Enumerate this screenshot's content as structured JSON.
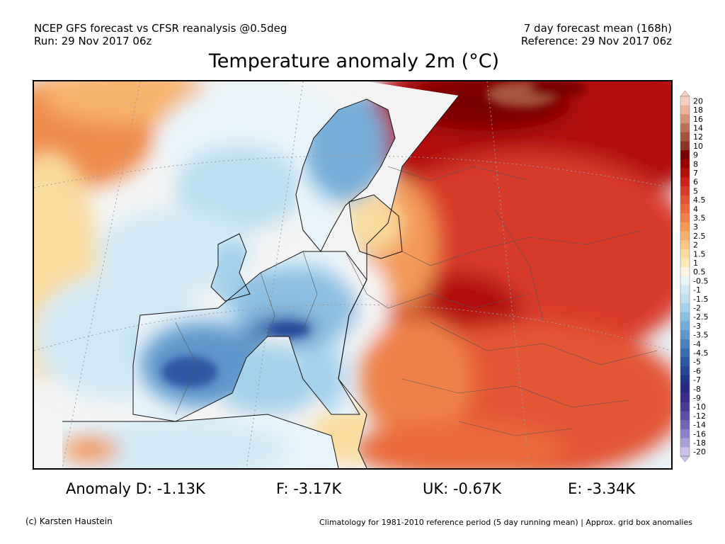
{
  "header": {
    "source_line": "NCEP GFS forecast vs CFSR reanalysis @0.5deg",
    "run_line": "Run: 29 Nov 2017 06z",
    "forecast_line": "7 day forecast mean (168h)",
    "reference_line": "Reference: 29 Nov 2017 06z"
  },
  "title": "Temperature anomaly 2m (°C)",
  "map": {
    "region": "Europe",
    "ocean_color": "#f5f5f5"
  },
  "legend": {
    "labels": [
      "20",
      "18",
      "16",
      "14",
      "12",
      "10",
      "9",
      "8",
      "7",
      "6",
      "5",
      "4.5",
      "4",
      "3.5",
      "3",
      "2.5",
      "2",
      "1.5",
      "1",
      "0.5",
      "-0.5",
      "-1",
      "-1.5",
      "-2",
      "-2.5",
      "-3",
      "-3.5",
      "-4",
      "-4.5",
      "-5",
      "-6",
      "-7",
      "-8",
      "-9",
      "-10",
      "-12",
      "-14",
      "-16",
      "-18",
      "-20"
    ],
    "colors": [
      "#f6d0bf",
      "#eab29b",
      "#d49278",
      "#bb7058",
      "#a55441",
      "#8a3525",
      "#7a0000",
      "#990000",
      "#b3100c",
      "#c8221a",
      "#d93a2c",
      "#e35436",
      "#ea6a3c",
      "#ef8048",
      "#f39a58",
      "#f6b26c",
      "#f8c884",
      "#fadc9e",
      "#fceab8",
      "#fdf6e0",
      "#e8f4fa",
      "#d2eaf6",
      "#bcdff1",
      "#a4d0ea",
      "#8cc0e2",
      "#74add8",
      "#5f98cc",
      "#4c82bf",
      "#3b6cb0",
      "#2e57a2",
      "#284696",
      "#23358a",
      "#2a2880",
      "#3a2c8a",
      "#4a3a96",
      "#5e4ea6",
      "#7464b6",
      "#8e80c8",
      "#ab9fd8",
      "#cac0ea"
    ]
  },
  "stats": {
    "d": "Anomaly D: -1.13K",
    "f": "F: -3.17K",
    "uk": "UK: -0.67K",
    "e": "E: -3.34K"
  },
  "footer": {
    "credit": "(c) Karsten Haustein",
    "note": "Climatology for 1981-2010 reference period (5 day running mean) | Approx. grid box anomalies"
  }
}
